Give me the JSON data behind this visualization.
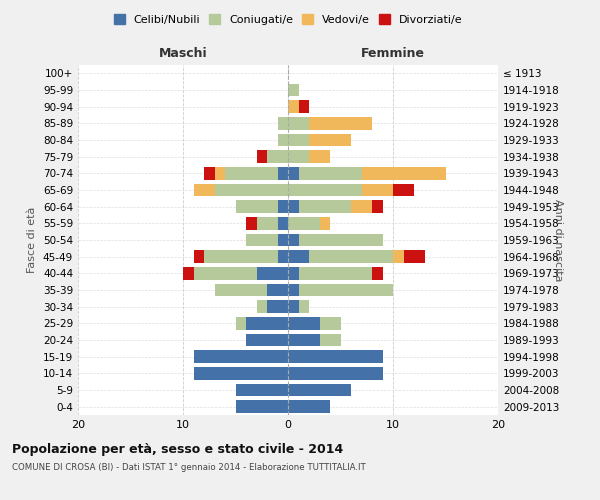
{
  "age_groups": [
    "0-4",
    "5-9",
    "10-14",
    "15-19",
    "20-24",
    "25-29",
    "30-34",
    "35-39",
    "40-44",
    "45-49",
    "50-54",
    "55-59",
    "60-64",
    "65-69",
    "70-74",
    "75-79",
    "80-84",
    "85-89",
    "90-94",
    "95-99",
    "100+"
  ],
  "birth_years": [
    "2009-2013",
    "2004-2008",
    "1999-2003",
    "1994-1998",
    "1989-1993",
    "1984-1988",
    "1979-1983",
    "1974-1978",
    "1969-1973",
    "1964-1968",
    "1959-1963",
    "1954-1958",
    "1949-1953",
    "1944-1948",
    "1939-1943",
    "1934-1938",
    "1929-1933",
    "1924-1928",
    "1919-1923",
    "1914-1918",
    "≤ 1913"
  ],
  "colors": {
    "celibi": "#4472a8",
    "coniugati": "#b5c99a",
    "vedovi": "#f0b85a",
    "divorziati": "#cc1111"
  },
  "maschi": {
    "celibi": [
      5,
      5,
      9,
      9,
      4,
      4,
      2,
      2,
      3,
      1,
      1,
      1,
      1,
      0,
      1,
      0,
      0,
      0,
      0,
      0,
      0
    ],
    "coniugati": [
      0,
      0,
      0,
      0,
      0,
      1,
      1,
      5,
      6,
      7,
      3,
      2,
      4,
      7,
      5,
      2,
      1,
      1,
      0,
      0,
      0
    ],
    "vedovi": [
      0,
      0,
      0,
      0,
      0,
      0,
      0,
      0,
      0,
      0,
      0,
      0,
      0,
      2,
      1,
      0,
      0,
      0,
      0,
      0,
      0
    ],
    "divorziati": [
      0,
      0,
      0,
      0,
      0,
      0,
      0,
      0,
      1,
      1,
      0,
      1,
      0,
      0,
      1,
      1,
      0,
      0,
      0,
      0,
      0
    ]
  },
  "femmine": {
    "celibi": [
      4,
      6,
      9,
      9,
      3,
      3,
      1,
      1,
      1,
      2,
      1,
      0,
      1,
      0,
      1,
      0,
      0,
      0,
      0,
      0,
      0
    ],
    "coniugati": [
      0,
      0,
      0,
      0,
      2,
      2,
      1,
      9,
      7,
      8,
      8,
      3,
      5,
      7,
      6,
      2,
      2,
      2,
      0,
      1,
      0
    ],
    "vedovi": [
      0,
      0,
      0,
      0,
      0,
      0,
      0,
      0,
      0,
      1,
      0,
      1,
      2,
      3,
      8,
      2,
      4,
      6,
      1,
      0,
      0
    ],
    "divorziati": [
      0,
      0,
      0,
      0,
      0,
      0,
      0,
      0,
      1,
      2,
      0,
      0,
      1,
      2,
      0,
      0,
      0,
      0,
      1,
      0,
      0
    ]
  },
  "title_main": "Popolazione per età, sesso e stato civile - 2014",
  "title_sub": "COMUNE DI CROSA (BI) - Dati ISTAT 1° gennaio 2014 - Elaborazione TUTTITALIA.IT",
  "xlabel_left": "Maschi",
  "xlabel_right": "Femmine",
  "ylabel_left": "Fasce di età",
  "ylabel_right": "Anni di nascita",
  "legend_labels": [
    "Celibi/Nubili",
    "Coniugati/e",
    "Vedovi/e",
    "Divorziati/e"
  ],
  "xlim": 20,
  "background": "#f0f0f0",
  "plot_background": "#ffffff"
}
